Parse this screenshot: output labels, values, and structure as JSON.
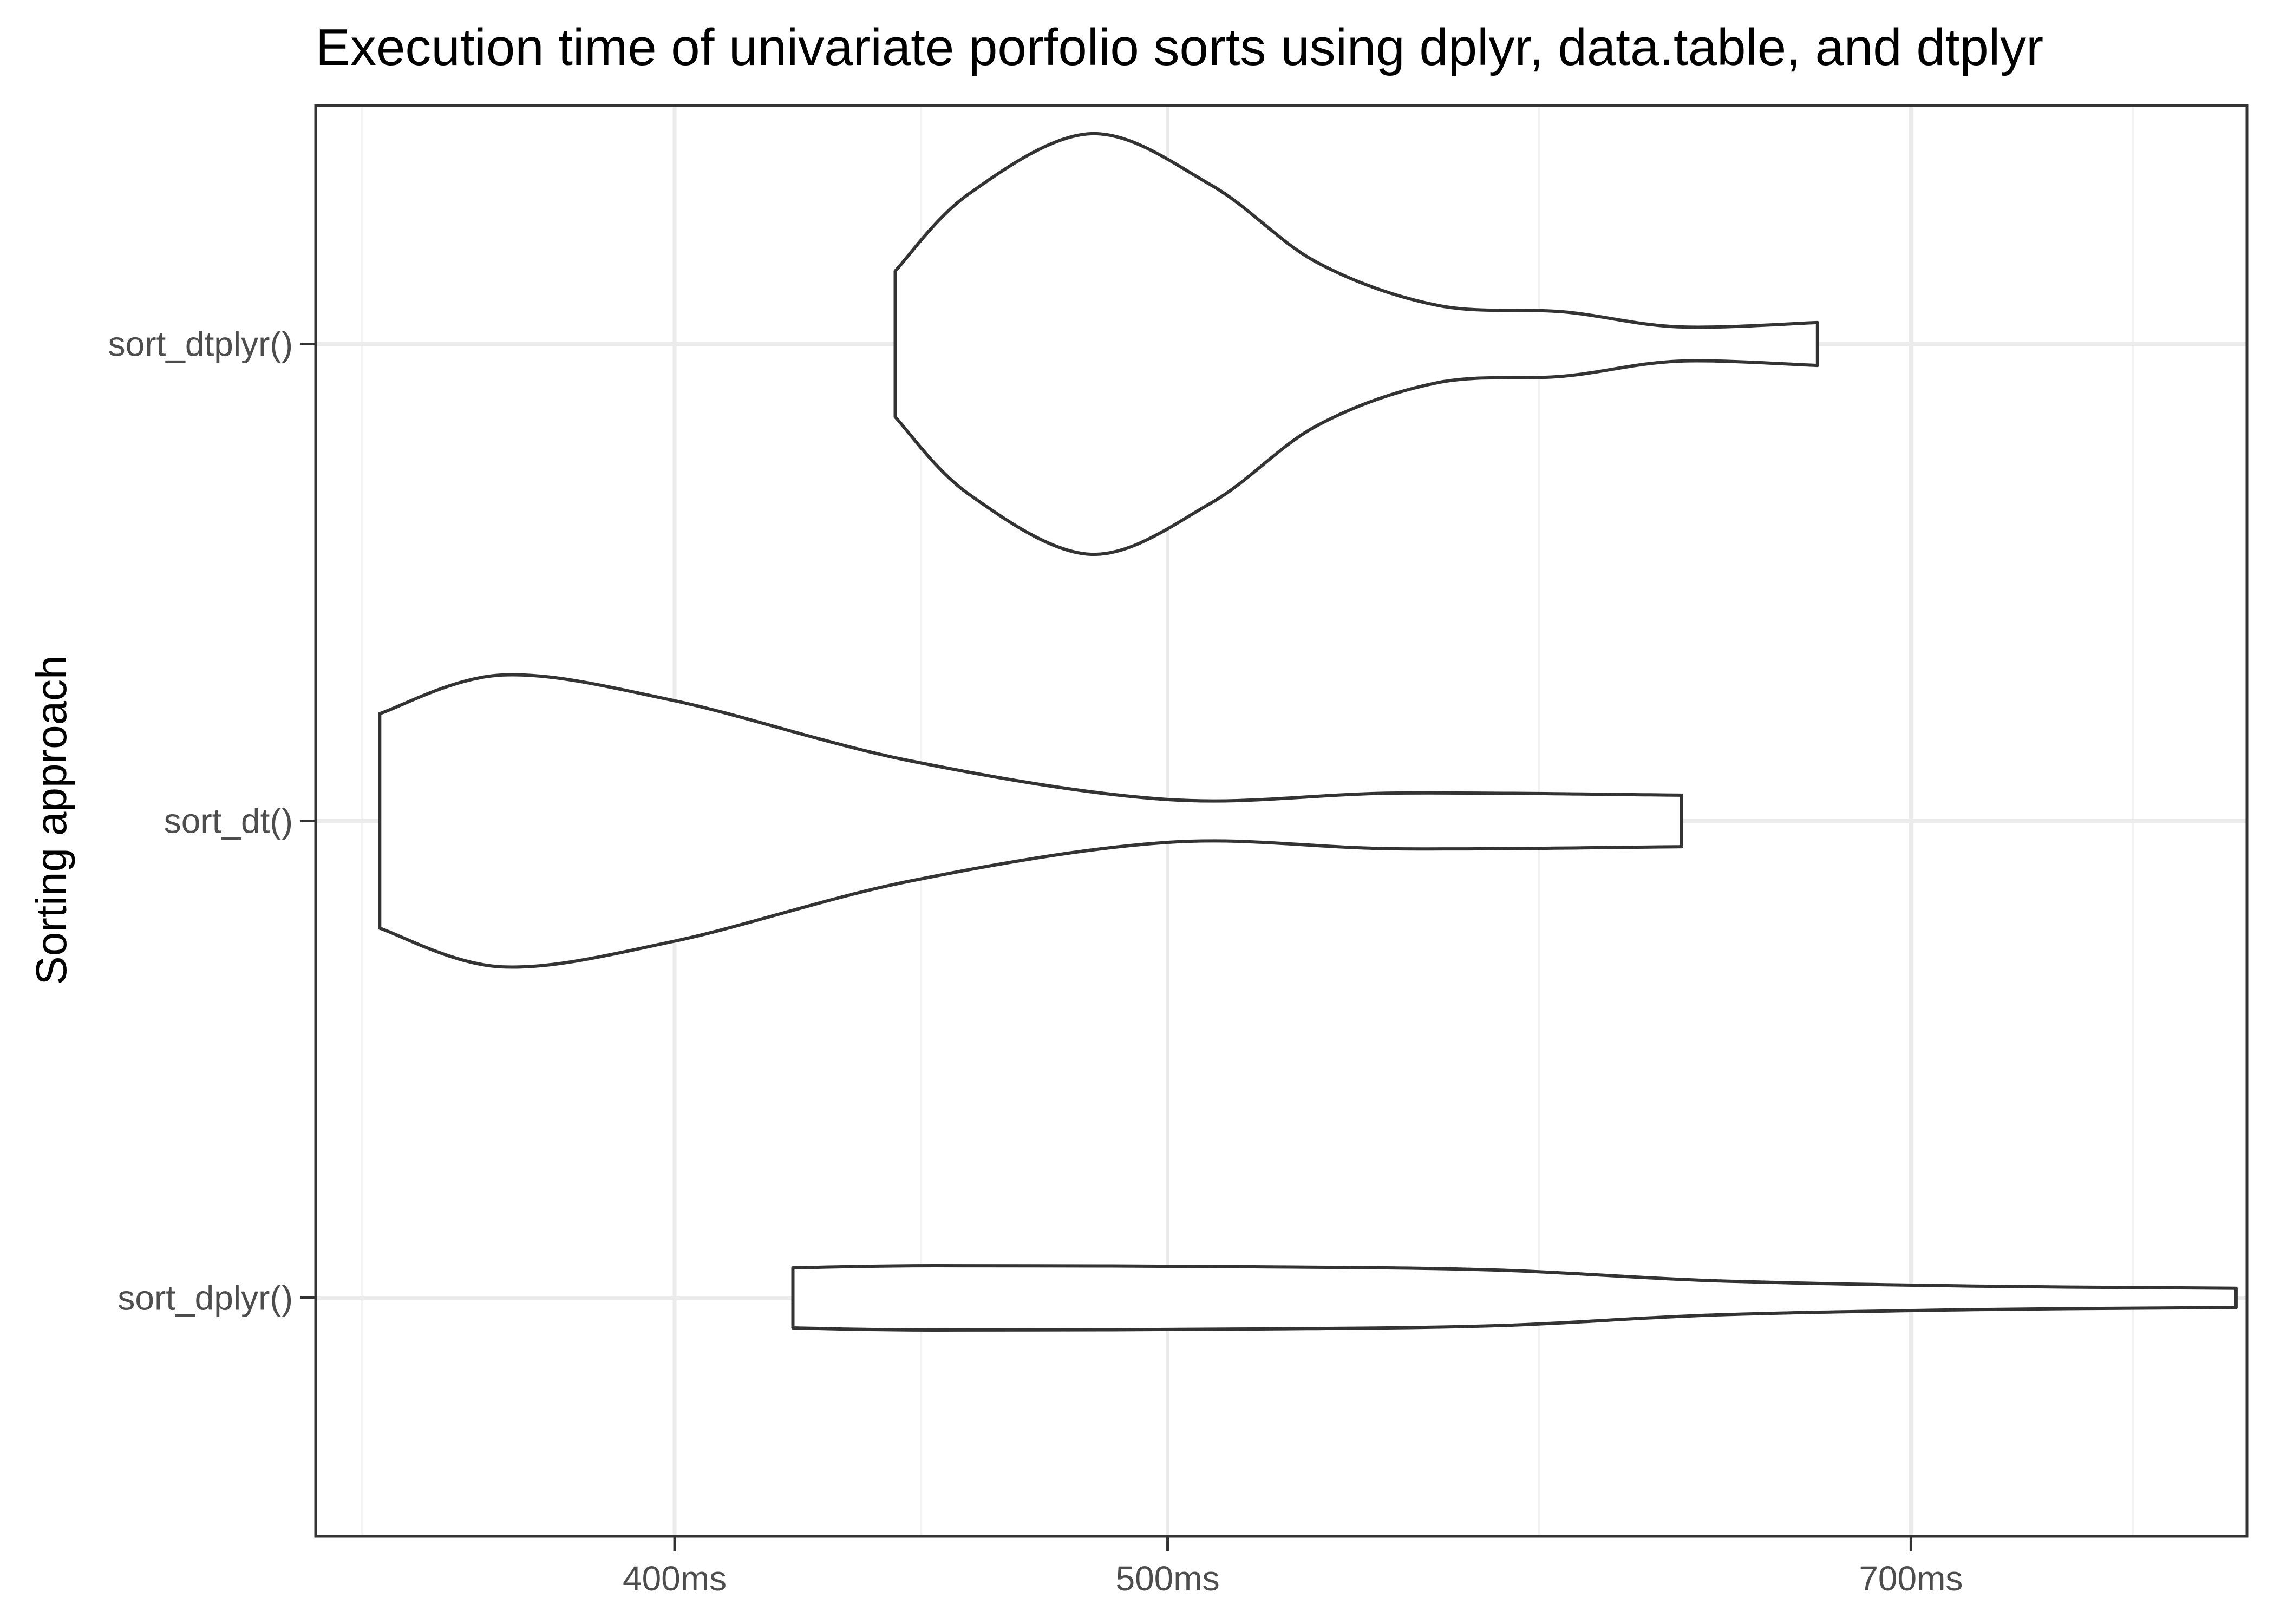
{
  "chart_data": {
    "type": "violin",
    "title": "Execution time of univariate porfolio sorts using dplyr, data.table, and dtplyr",
    "xlabel": "",
    "ylabel": "Sorting approach",
    "x_scale": "log",
    "x_range_ms": [
      340,
      815
    ],
    "x_ticks_ms": [
      400,
      500,
      700
    ],
    "x_tick_labels": [
      "400ms",
      "500ms",
      "700ms"
    ],
    "categories": [
      "sort_dtplyr()",
      "sort_dt()",
      "sort_dplyr()"
    ],
    "grid": true,
    "series": [
      {
        "category": "sort_dtplyr()",
        "min_ms": 442,
        "max_ms": 671,
        "density_profile": [
          {
            "ms": 442,
            "density": 0.34
          },
          {
            "ms": 457,
            "density": 0.7
          },
          {
            "ms": 483,
            "density": 0.98
          },
          {
            "ms": 510,
            "density": 0.74
          },
          {
            "ms": 535,
            "density": 0.38
          },
          {
            "ms": 565,
            "density": 0.18
          },
          {
            "ms": 598,
            "density": 0.15
          },
          {
            "ms": 630,
            "density": 0.08
          },
          {
            "ms": 671,
            "density": 0.1
          }
        ]
      },
      {
        "category": "sort_dt()",
        "min_ms": 350,
        "max_ms": 631,
        "density_profile": [
          {
            "ms": 350,
            "density": 0.5
          },
          {
            "ms": 370,
            "density": 0.68
          },
          {
            "ms": 400,
            "density": 0.56
          },
          {
            "ms": 445,
            "density": 0.28
          },
          {
            "ms": 500,
            "density": 0.1
          },
          {
            "ms": 555,
            "density": 0.13
          },
          {
            "ms": 631,
            "density": 0.12
          }
        ]
      },
      {
        "category": "sort_dplyr()",
        "min_ms": 422,
        "max_ms": 811,
        "density_profile": [
          {
            "ms": 422,
            "density": 0.14
          },
          {
            "ms": 450,
            "density": 0.15
          },
          {
            "ms": 520,
            "density": 0.145
          },
          {
            "ms": 580,
            "density": 0.13
          },
          {
            "ms": 640,
            "density": 0.08
          },
          {
            "ms": 720,
            "density": 0.055
          },
          {
            "ms": 811,
            "density": 0.045
          }
        ]
      }
    ],
    "colors": {
      "outline": "#333333",
      "panel_border": "#333333",
      "grid_major": "#ebebeb",
      "grid_minor": "#f2f2f2",
      "tick_text": "#4d4d4d"
    }
  }
}
